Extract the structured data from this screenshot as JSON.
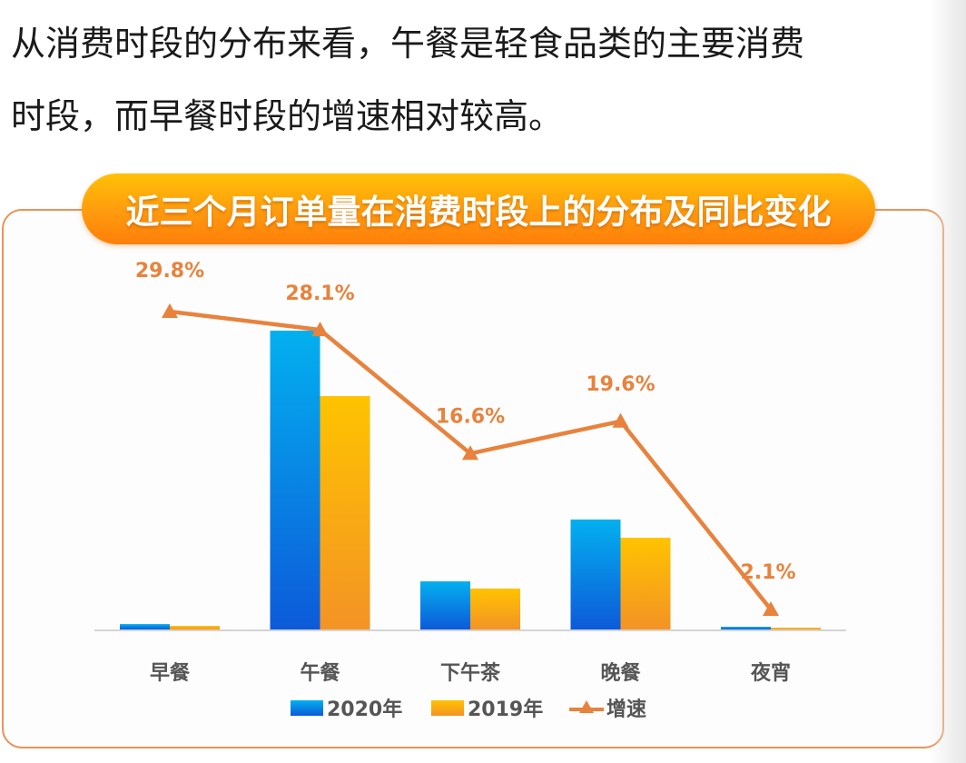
{
  "intro_text": {
    "line1": "从消费时段的分布来看，午餐是轻食品类的主要消费",
    "line2": "时段，而早餐时段的增速相对较高。"
  },
  "chart_data": {
    "type": "bar",
    "title": "近三个月订单量在消费时段上的分布及同比变化",
    "xlabel": "",
    "ylabel": "",
    "categories": [
      "早餐",
      "午餐",
      "下午茶",
      "晚餐",
      "夜宵"
    ],
    "series": [
      {
        "name": "2020年",
        "type": "bar",
        "values": [
          1.8,
          100,
          16.1,
          36.8,
          0.9
        ],
        "color": "#0a8fe6"
      },
      {
        "name": "2019年",
        "type": "bar",
        "values": [
          1.2,
          78.1,
          13.7,
          30.7,
          0.6
        ],
        "color": "#fbab12"
      },
      {
        "name": "增速",
        "type": "line",
        "values": [
          29.8,
          28.1,
          16.6,
          19.6,
          2.1
        ],
        "labels": [
          "29.8%",
          "28.1%",
          "16.6%",
          "19.6%",
          "2.1%"
        ],
        "color": "#e8823c",
        "marker": "triangle"
      }
    ],
    "bar_value_note": "relative order volume index (午餐 2020 = 100), estimated from bar heights; no y-axis shown",
    "growth_unit": "%",
    "grid": false,
    "legend_position": "bottom-center"
  },
  "colors": {
    "accent_orange": "#e8823c",
    "bar_2020_top": "#03b0ef",
    "bar_2020_bottom": "#0d5ad9",
    "bar_2019_top": "#ffc300",
    "bar_2019_bottom": "#f39325",
    "banner_top": "#ffc107",
    "banner_bottom": "#ff7f0a",
    "card_border": "#e8935a"
  }
}
